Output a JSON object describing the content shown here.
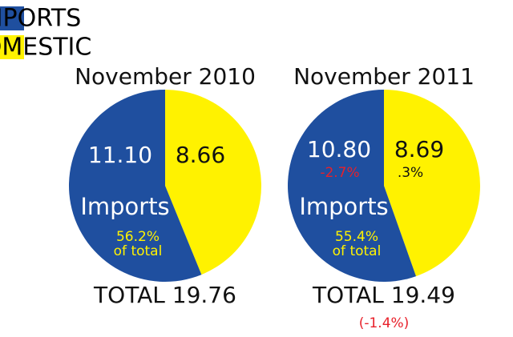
{
  "legend": [
    {
      "name": "IMPORTS",
      "color": "#1f4f9f"
    },
    {
      "name": "DOMESTIC",
      "color": "#fff200"
    }
  ],
  "chart_data": [
    {
      "type": "pie",
      "title": "November 2010",
      "values": [
        11.1,
        8.66
      ],
      "value_labels": [
        "11.10",
        "8.66"
      ],
      "inner_label": "Imports",
      "share_label": "56.2%",
      "share_note": "of total",
      "total_label": "TOTAL 19.76"
    },
    {
      "type": "pie",
      "title": "November 2011",
      "values": [
        10.8,
        8.69
      ],
      "value_labels": [
        "10.80",
        "8.69"
      ],
      "changes": [
        "-2.7%",
        ".3%"
      ],
      "inner_label": "Imports",
      "share_label": "55.4%",
      "share_note": "of total",
      "total_label": "TOTAL 19.49",
      "total_change": "(-1.4%)"
    }
  ]
}
